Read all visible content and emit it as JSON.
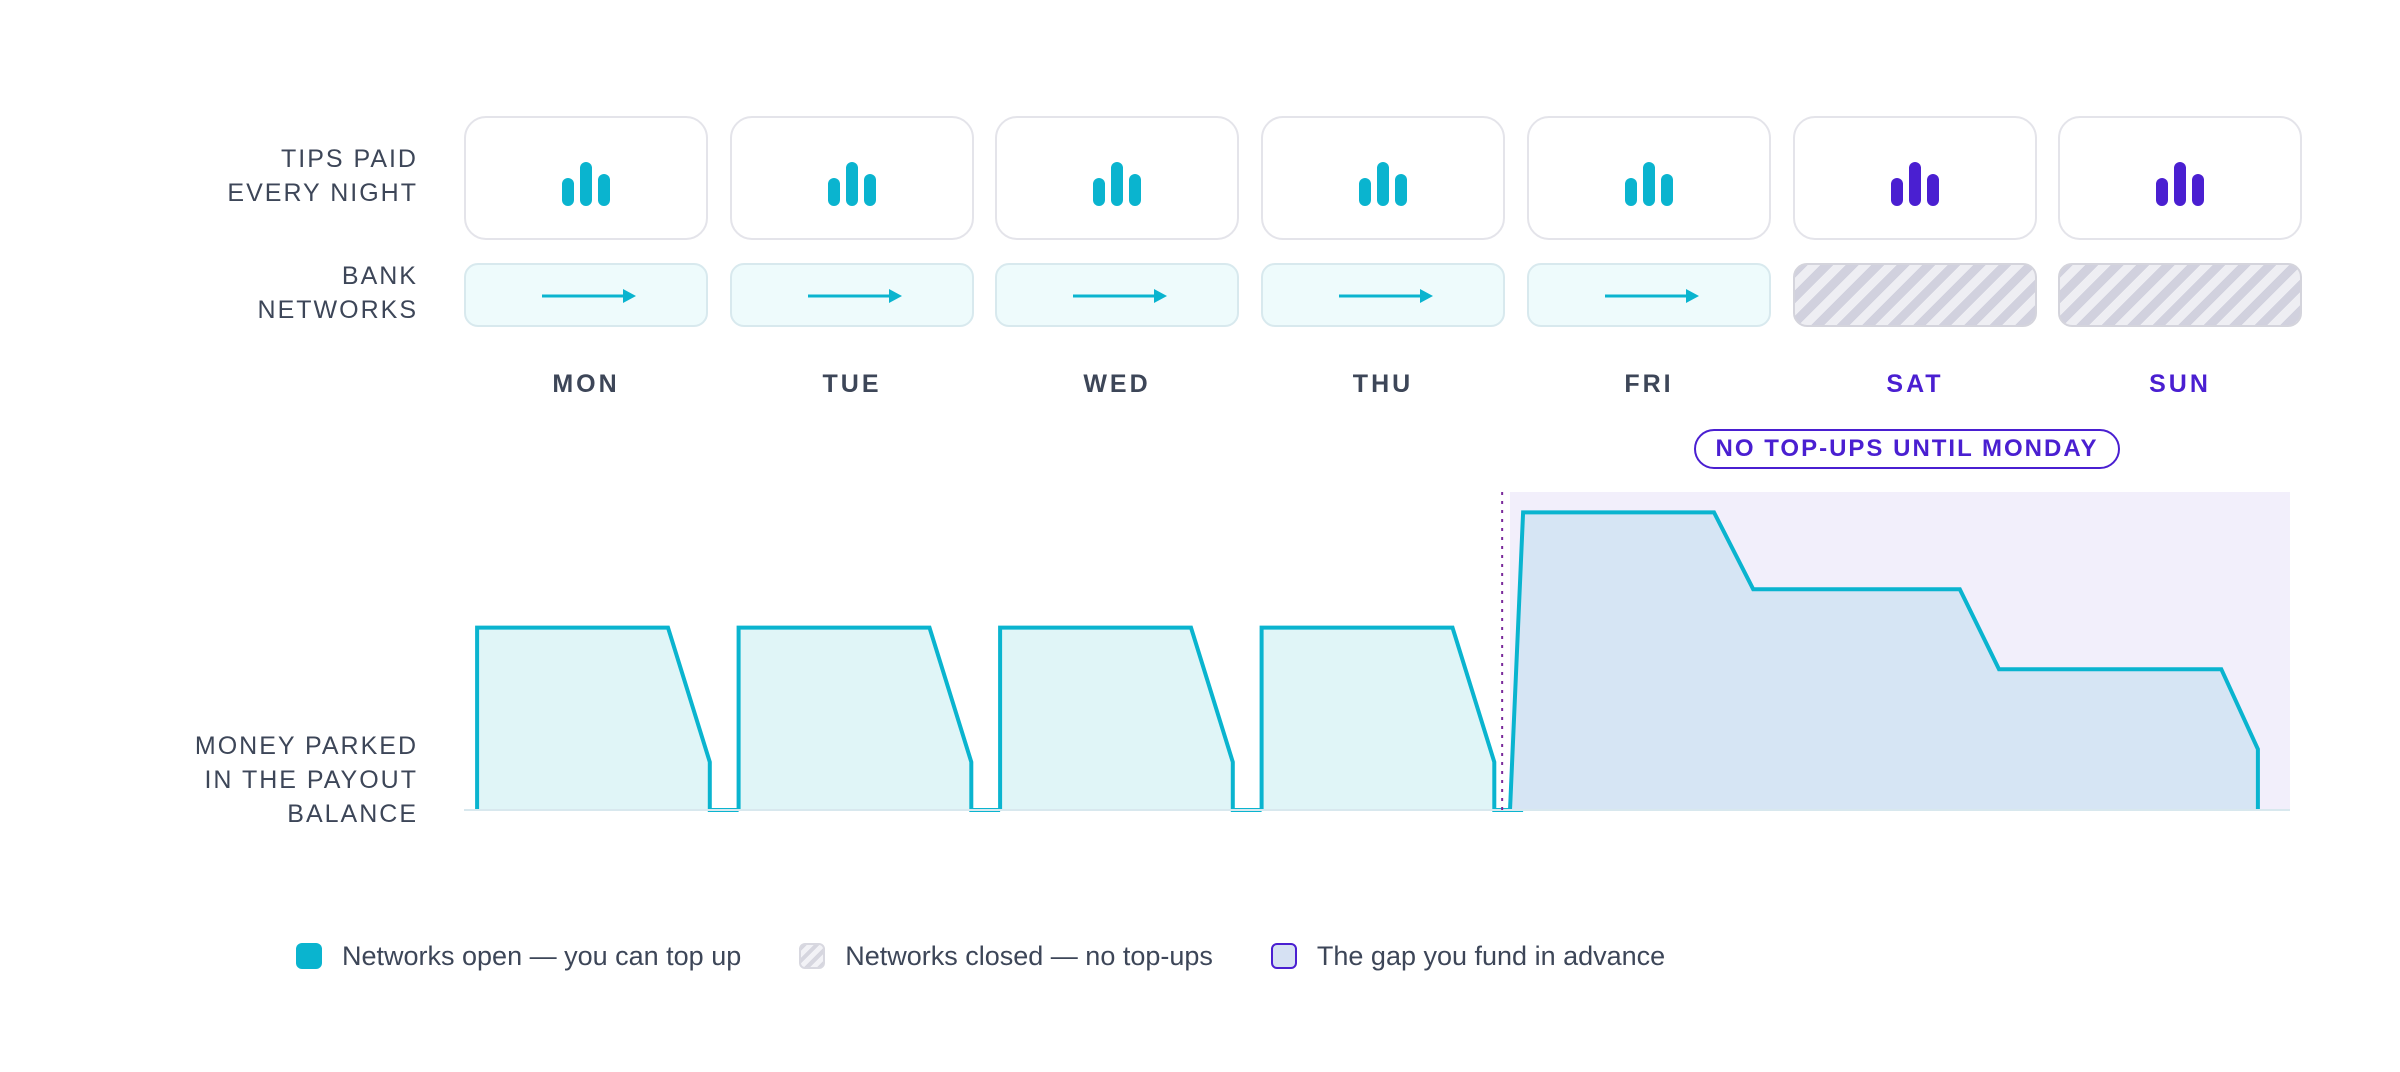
{
  "rows": {
    "tips_label": [
      "TIPS PAID",
      "EVERY NIGHT"
    ],
    "bank_label": [
      "BANK",
      "NETWORKS"
    ],
    "balance_label": [
      "MONEY PARKED",
      "IN THE PAYOUT",
      "BALANCE"
    ]
  },
  "days": [
    {
      "label": "MON",
      "networks": "open"
    },
    {
      "label": "TUE",
      "networks": "open"
    },
    {
      "label": "WED",
      "networks": "open"
    },
    {
      "label": "THU",
      "networks": "open"
    },
    {
      "label": "FRI",
      "networks": "open"
    },
    {
      "label": "SAT",
      "networks": "closed"
    },
    {
      "label": "SUN",
      "networks": "closed"
    }
  ],
  "badge": "NO TOP-UPS UNTIL MONDAY",
  "icons": {
    "tips": "bar-chart-icon",
    "bank": "arrow-right-icon"
  },
  "colors": {
    "open": "#0ab4cf",
    "weekend": "#4a1fd1",
    "open_fill": "#e0f5f7",
    "gap_fill": "#d6e5f4",
    "closed_zone": "#f2effb",
    "label": "#3d4658"
  },
  "legend": {
    "open": "Networks open — you can top up",
    "closed": "Networks closed — no top-ups",
    "gap": "The gap you fund in advance"
  },
  "chart_data": {
    "type": "area",
    "title": "",
    "xlabel": "",
    "ylabel": "MONEY PARKED IN THE PAYOUT BALANCE",
    "ylim": [
      0,
      100
    ],
    "weekday_cycle": {
      "days": [
        "MON",
        "TUE",
        "WED",
        "THU"
      ],
      "points_day_fraction": [
        [
          0.05,
          0
        ],
        [
          0.05,
          57
        ],
        [
          0.78,
          57
        ],
        [
          0.94,
          15
        ],
        [
          0.94,
          0
        ],
        [
          1.05,
          0
        ]
      ]
    },
    "weekend_series": {
      "name": "",
      "points_day_fraction": [
        [
          4.0,
          0
        ],
        [
          4.05,
          93
        ],
        [
          4.78,
          93
        ],
        [
          4.93,
          69
        ],
        [
          5.72,
          69
        ],
        [
          5.87,
          44
        ],
        [
          6.72,
          44
        ],
        [
          6.86,
          19
        ],
        [
          6.86,
          0
        ]
      ]
    },
    "marker": {
      "at_day_fraction": 3.97,
      "style": "dotted"
    }
  }
}
